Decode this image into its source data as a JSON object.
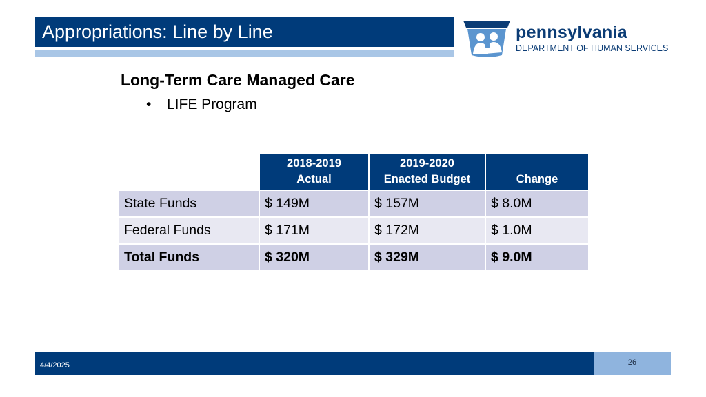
{
  "slide": {
    "title": "Appropriations: Line by Line",
    "heading": "Long-Term Care Managed Care",
    "bullet": "LIFE Program",
    "bullet_marker": "•"
  },
  "logo": {
    "name": "pennsylvania",
    "department": "DEPARTMENT OF HUMAN SERVICES"
  },
  "table": {
    "headers": [
      {
        "line1": "2018-2019",
        "line2": "Actual"
      },
      {
        "line1": "2019-2020",
        "line2": "Enacted Budget"
      },
      {
        "line1": "",
        "line2": "Change"
      }
    ],
    "rows": [
      {
        "label": "State Funds",
        "actual": "$ 149M",
        "enacted": "$ 157M",
        "change": "$ 8.0M"
      },
      {
        "label": "Federal Funds",
        "actual": "$ 171M",
        "enacted": "$ 172M",
        "change": "$ 1.0M"
      },
      {
        "label": "Total Funds",
        "actual": "$ 320M",
        "enacted": "$ 329M",
        "change": "$ 9.0M"
      }
    ]
  },
  "footer": {
    "date": "4/4/2025",
    "page_number": "26"
  },
  "colors": {
    "brand_blue": "#003b7a",
    "accent_light_blue": "#a9c6e6",
    "page_box": "#8fb4de"
  }
}
